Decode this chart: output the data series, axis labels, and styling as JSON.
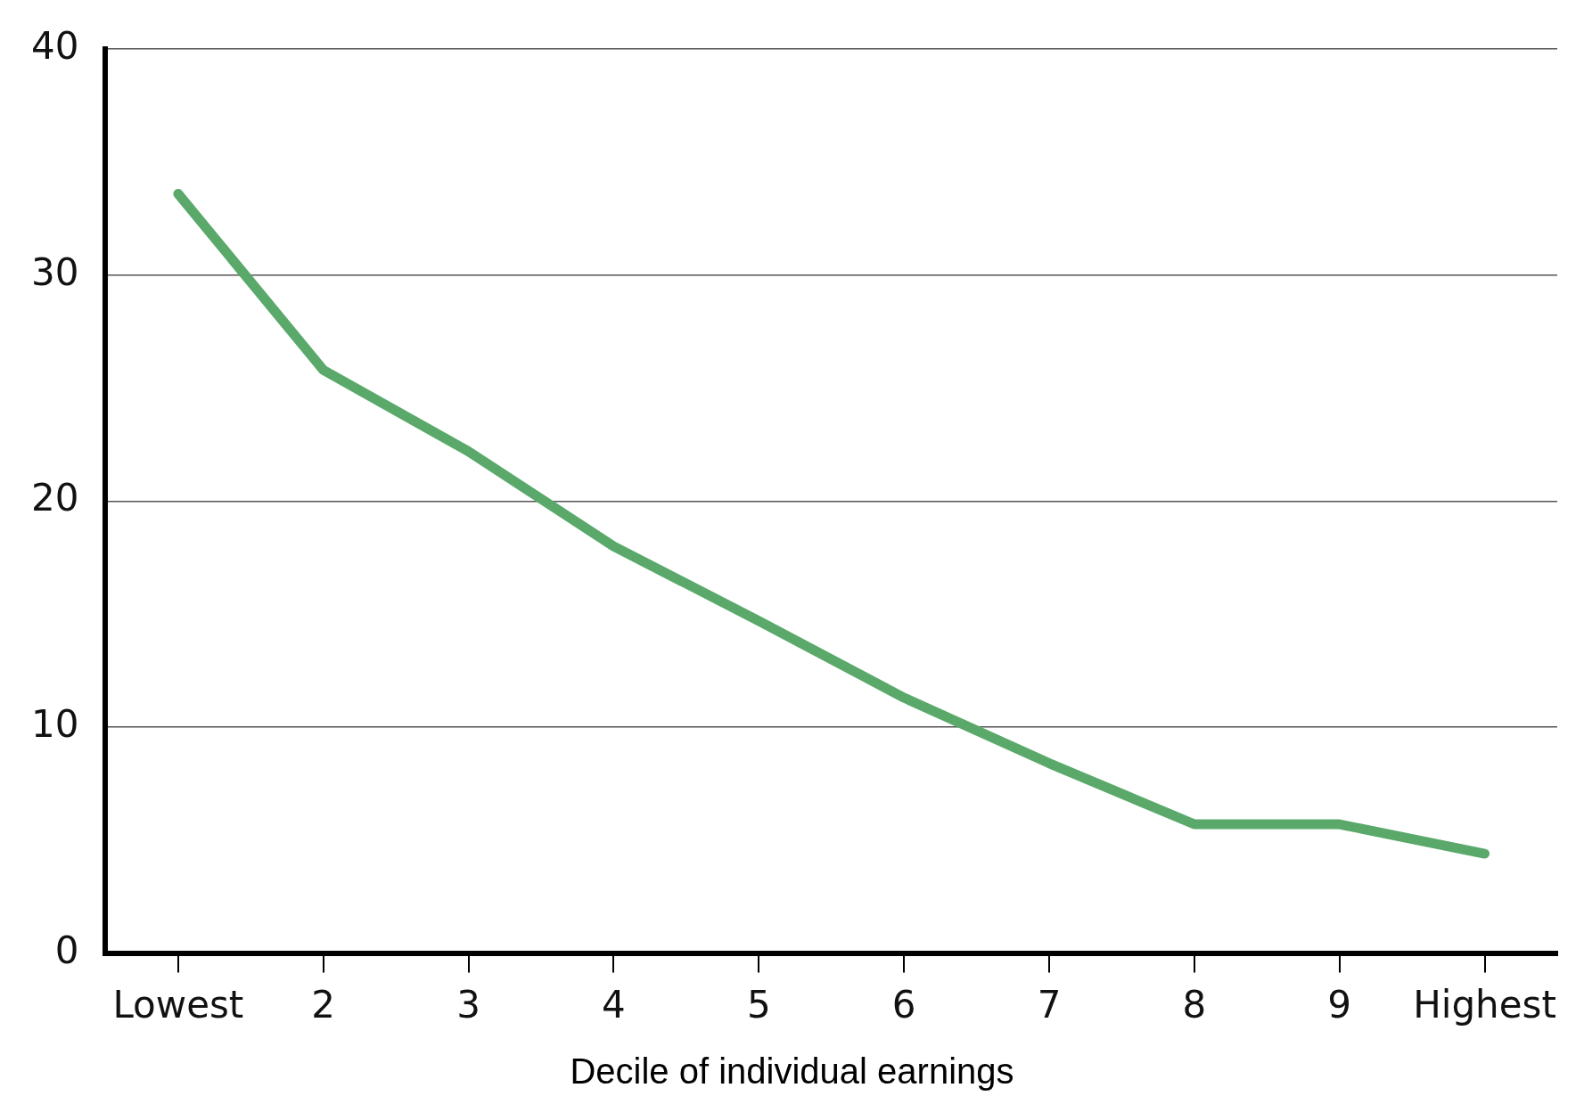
{
  "chart_data": {
    "type": "line",
    "xlabel": "Decile of individual earnings",
    "categories": [
      "Lowest",
      "2",
      "3",
      "4",
      "5",
      "6",
      "7",
      "8",
      "9",
      "Highest"
    ],
    "series": [
      {
        "color": "#5aa96a",
        "values": [
          33.6,
          25.8,
          22.2,
          18.0,
          14.7,
          11.3,
          8.4,
          5.7,
          5.7,
          4.4
        ]
      }
    ],
    "ylim": [
      0,
      40
    ],
    "yticks": [
      0,
      10,
      20,
      30,
      40
    ],
    "grid": "y",
    "legend": false,
    "marker": "none",
    "line_style": "solid"
  }
}
